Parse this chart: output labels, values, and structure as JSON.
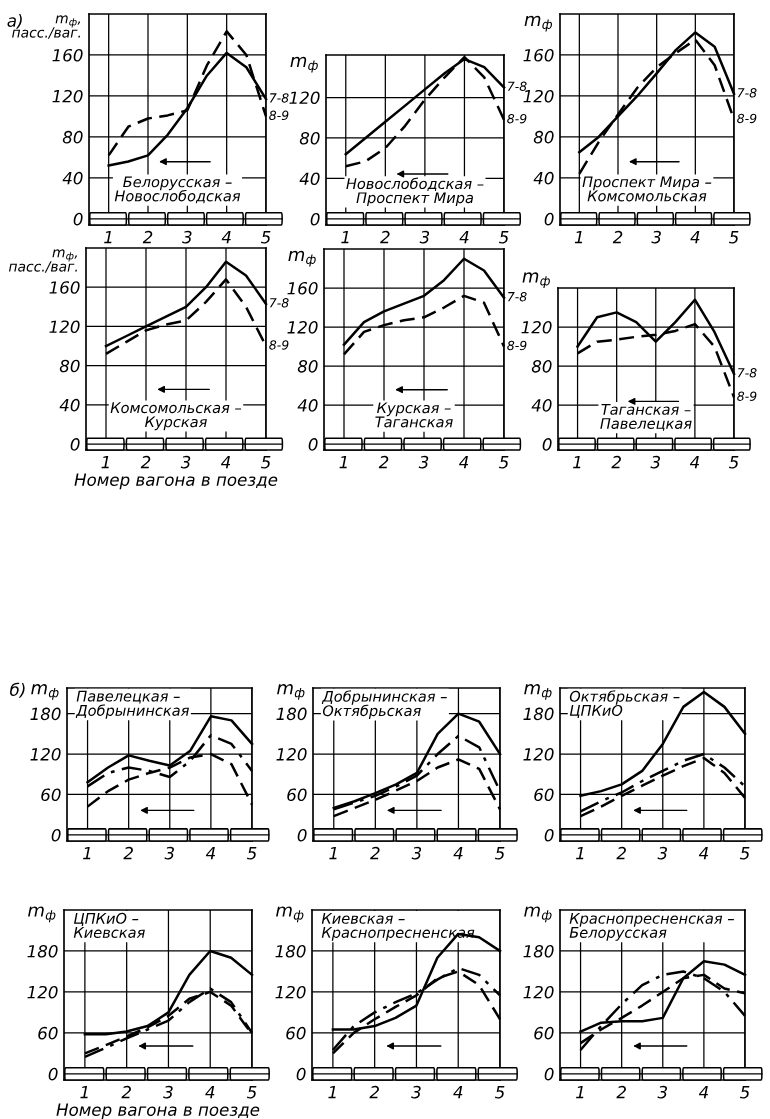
{
  "chart_data": [
    {
      "type": "line",
      "title": "Белорусская –\nНовослободская",
      "ylabel": "m$_{ф}$,\nпасс./ваг.",
      "annotations": [
        "а)"
      ],
      "x": [
        1,
        1.5,
        2,
        2.5,
        3,
        3.5,
        4,
        4.5,
        5
      ],
      "xlim": [
        0.5,
        5
      ],
      "ylim": [
        -6,
        200
      ],
      "xticks": [
        1,
        2,
        3,
        4,
        5
      ],
      "yticks": [
        0,
        40,
        80,
        120,
        160
      ],
      "grid": true,
      "series": [
        {
          "name": "7-8",
          "color": "#000000",
          "line_style": "solid",
          "values": [
            52,
            56,
            62,
            82,
            108,
            140,
            162,
            148,
            117
          ]
        },
        {
          "name": "8-9",
          "color": "#000000",
          "line_style": "dashed",
          "values": [
            62,
            90,
            98,
            101,
            106,
            150,
            183,
            160,
            100
          ]
        }
      ]
    },
    {
      "type": "line",
      "title": "Новослободская –\nПроспект Мира",
      "ylabel": "m$_{ф}$",
      "x": [
        1,
        1.5,
        2,
        2.5,
        3,
        3.5,
        4,
        4.5,
        5
      ],
      "xlim": [
        0.5,
        5
      ],
      "ylim": [
        -6,
        162
      ],
      "xticks": [
        1,
        2,
        3,
        4,
        5
      ],
      "yticks": [
        0,
        40,
        80,
        120
      ],
      "grid": true,
      "series": [
        {
          "name": "7-8",
          "color": "#000000",
          "line_style": "solid",
          "values": [
            64,
            80,
            96,
            112,
            128,
            144,
            158,
            150,
            130
          ]
        },
        {
          "name": "8-9",
          "color": "#000000",
          "line_style": "dashed",
          "values": [
            52,
            57,
            70,
            92,
            118,
            140,
            160,
            140,
            98
          ]
        }
      ]
    },
    {
      "type": "line",
      "title": "Проспект Мира –\nКомсомольская",
      "ylabel": "m$_{ф}$",
      "x": [
        1,
        1.5,
        2,
        2.5,
        3,
        3.5,
        4,
        4.5,
        5
      ],
      "xlim": [
        0.5,
        5
      ],
      "ylim": [
        -6,
        200
      ],
      "xticks": [
        1,
        2,
        3,
        4,
        5
      ],
      "yticks": [
        0,
        40,
        80,
        120,
        160
      ],
      "grid": true,
      "series": [
        {
          "name": "7-8",
          "color": "#000000",
          "line_style": "solid",
          "values": [
            65,
            80,
            100,
            120,
            142,
            165,
            182,
            168,
            122
          ]
        },
        {
          "name": "8-9",
          "color": "#000000",
          "line_style": "dashed",
          "values": [
            44,
            75,
            102,
            128,
            148,
            162,
            175,
            150,
            97
          ]
        }
      ]
    },
    {
      "type": "line",
      "title": "Комсомольская –\nКурская",
      "ylabel": "m$_{ф}$,\nпасс./ваг.",
      "xlabel": "Номер вагона в поезде",
      "x": [
        1,
        1.5,
        2,
        2.5,
        3,
        3.5,
        4,
        4.5,
        5
      ],
      "xlim": [
        0.5,
        5
      ],
      "ylim": [
        -6,
        200
      ],
      "xticks": [
        1,
        2,
        3,
        4,
        5
      ],
      "yticks": [
        0,
        40,
        80,
        120,
        160
      ],
      "grid": true,
      "series": [
        {
          "name": "7-8",
          "color": "#000000",
          "line_style": "solid",
          "values": [
            100,
            110,
            120,
            130,
            140,
            160,
            186,
            172,
            143
          ]
        },
        {
          "name": "8-9",
          "color": "#000000",
          "line_style": "dashed",
          "values": [
            92,
            104,
            116,
            122,
            126,
            145,
            168,
            140,
            100
          ]
        }
      ]
    },
    {
      "type": "line",
      "title": "Курская –\nТаганская",
      "ylabel": "m$_{ф}$",
      "x": [
        1,
        1.5,
        2,
        2.5,
        3,
        3.5,
        4,
        4.5,
        5
      ],
      "xlim": [
        0.5,
        5
      ],
      "ylim": [
        -6,
        200
      ],
      "xticks": [
        1,
        2,
        3,
        4,
        5
      ],
      "yticks": [
        0,
        40,
        80,
        120,
        160
      ],
      "grid": true,
      "series": [
        {
          "name": "7-8",
          "color": "#000000",
          "line_style": "solid",
          "values": [
            102,
            125,
            136,
            144,
            152,
            168,
            190,
            178,
            150
          ]
        },
        {
          "name": "8-9",
          "color": "#000000",
          "line_style": "dashed",
          "values": [
            92,
            115,
            122,
            127,
            130,
            140,
            152,
            145,
            100
          ]
        }
      ]
    },
    {
      "type": "line",
      "title": "Таганская –\nПавелецкая",
      "ylabel": "m$_{ф}$",
      "x": [
        1,
        1.5,
        2,
        2.5,
        3,
        3.5,
        4,
        4.5,
        5
      ],
      "xlim": [
        0.5,
        5
      ],
      "ylim": [
        -6,
        160
      ],
      "xticks": [
        1,
        2,
        3,
        4,
        5
      ],
      "yticks": [
        0,
        40,
        80,
        120
      ],
      "grid": true,
      "series": [
        {
          "name": "7-8",
          "color": "#000000",
          "line_style": "solid",
          "values": [
            100,
            130,
            135,
            125,
            105,
            125,
            148,
            115,
            72
          ]
        },
        {
          "name": "8-9",
          "color": "#000000",
          "line_style": "dashed",
          "values": [
            93,
            105,
            107,
            110,
            112,
            116,
            123,
            100,
            48
          ]
        }
      ]
    },
    {
      "type": "line",
      "title": "Павелецкая –\nДобрынинская",
      "ylabel": "m$_{ф}$",
      "annotations": [
        "б)"
      ],
      "x": [
        1,
        1.5,
        2,
        2.5,
        3,
        3.5,
        4,
        4.5,
        5
      ],
      "xlim": [
        0.5,
        5
      ],
      "ylim": [
        -9,
        218
      ],
      "xticks": [
        1,
        2,
        3,
        4,
        5
      ],
      "yticks": [
        0,
        60,
        120,
        180
      ],
      "grid": true,
      "series": [
        {
          "color": "#000000",
          "line_style": "solid",
          "values": [
            78,
            100,
            118,
            110,
            103,
            125,
            176,
            170,
            135
          ]
        },
        {
          "color": "#000000",
          "line_style": "dashdot",
          "values": [
            72,
            92,
            100,
            95,
            86,
            110,
            148,
            135,
            95
          ]
        },
        {
          "color": "#000000",
          "line_style": "dashed",
          "values": [
            42,
            65,
            82,
            92,
            100,
            115,
            120,
            105,
            45
          ]
        }
      ]
    },
    {
      "type": "line",
      "title": "Добрынинская –\nОктябрьская",
      "ylabel": "m$_{ф}$",
      "x": [
        1,
        1.5,
        2,
        2.5,
        3,
        3.5,
        4,
        4.5,
        5
      ],
      "xlim": [
        0.5,
        5
      ],
      "ylim": [
        -9,
        218
      ],
      "xticks": [
        1,
        2,
        3,
        4,
        5
      ],
      "yticks": [
        0,
        60,
        120,
        180
      ],
      "grid": true,
      "series": [
        {
          "color": "#000000",
          "line_style": "solid",
          "values": [
            40,
            50,
            62,
            75,
            92,
            150,
            180,
            168,
            120
          ]
        },
        {
          "color": "#000000",
          "line_style": "dashdot",
          "values": [
            38,
            48,
            58,
            72,
            88,
            120,
            147,
            130,
            65
          ]
        },
        {
          "color": "#000000",
          "line_style": "dashed",
          "values": [
            28,
            40,
            52,
            66,
            80,
            100,
            112,
            98,
            38
          ]
        }
      ]
    },
    {
      "type": "line",
      "title": "Октябрьская –\nЦПКиО",
      "ylabel": "m$_{ф}$",
      "x": [
        1,
        1.5,
        2,
        2.5,
        3,
        3.5,
        4,
        4.5,
        5
      ],
      "xlim": [
        0.5,
        5
      ],
      "ylim": [
        -9,
        218
      ],
      "xticks": [
        1,
        2,
        3,
        4,
        5
      ],
      "yticks": [
        0,
        60,
        120,
        180
      ],
      "grid": true,
      "series": [
        {
          "color": "#000000",
          "line_style": "solid",
          "values": [
            58,
            65,
            75,
            95,
            135,
            190,
            212,
            190,
            150
          ]
        },
        {
          "color": "#000000",
          "line_style": "dashdot",
          "values": [
            35,
            50,
            63,
            80,
            95,
            110,
            120,
            100,
            72
          ]
        },
        {
          "color": "#000000",
          "line_style": "dashed",
          "values": [
            28,
            42,
            58,
            73,
            88,
            102,
            114,
            92,
            55
          ]
        }
      ]
    },
    {
      "type": "line",
      "title": "ЦПКиО –\nКиевская",
      "ylabel": "m$_{ф}$",
      "xlabel": "Номер вагона в поезде",
      "x": [
        1,
        1.5,
        2,
        2.5,
        3,
        3.5,
        4,
        4.5,
        5
      ],
      "xlim": [
        0.5,
        5
      ],
      "ylim": [
        -9,
        240
      ],
      "xticks": [
        1,
        2,
        3,
        4,
        5
      ],
      "yticks": [
        0,
        60,
        120,
        180
      ],
      "grid": true,
      "series": [
        {
          "color": "#000000",
          "line_style": "solid",
          "values": [
            58,
            58,
            62,
            70,
            90,
            145,
            180,
            170,
            145
          ]
        },
        {
          "color": "#000000",
          "line_style": "dashdot",
          "values": [
            25,
            38,
            52,
            65,
            78,
            105,
            125,
            105,
            60
          ]
        },
        {
          "color": "#000000",
          "line_style": "dashed",
          "values": [
            30,
            42,
            55,
            68,
            85,
            110,
            120,
            100,
            58
          ]
        }
      ]
    },
    {
      "type": "line",
      "title": "Киевская –\nКраснопресненская",
      "ylabel": "m$_{ф}$",
      "x": [
        1,
        1.5,
        2,
        2.5,
        3,
        3.5,
        4,
        4.5,
        5
      ],
      "xlim": [
        0.5,
        5
      ],
      "ylim": [
        -9,
        240
      ],
      "xticks": [
        1,
        2,
        3,
        4,
        5
      ],
      "yticks": [
        0,
        60,
        120,
        180
      ],
      "grid": true,
      "series": [
        {
          "color": "#000000",
          "line_style": "solid",
          "values": [
            65,
            65,
            70,
            82,
            100,
            170,
            205,
            200,
            180
          ]
        },
        {
          "color": "#000000",
          "line_style": "dashdot",
          "values": [
            35,
            70,
            90,
            105,
            118,
            138,
            155,
            145,
            115
          ]
        },
        {
          "color": "#000000",
          "line_style": "dashed",
          "values": [
            30,
            60,
            80,
            98,
            115,
            140,
            150,
            130,
            80
          ]
        }
      ]
    },
    {
      "type": "line",
      "title": "Краснопресненская –\nБелорусская",
      "ylabel": "m$_{ф}$",
      "x": [
        1,
        1.5,
        2,
        2.5,
        3,
        3.5,
        4,
        4.5,
        5
      ],
      "xlim": [
        0.5,
        5
      ],
      "ylim": [
        -9,
        240
      ],
      "xticks": [
        1,
        2,
        3,
        4,
        5
      ],
      "yticks": [
        0,
        60,
        120,
        180
      ],
      "grid": true,
      "series": [
        {
          "color": "#000000",
          "line_style": "solid",
          "values": [
            62,
            75,
            77,
            77,
            82,
            140,
            165,
            160,
            145
          ]
        },
        {
          "color": "#000000",
          "line_style": "dashdot",
          "values": [
            35,
            70,
            102,
            130,
            145,
            150,
            140,
            120,
            85
          ]
        },
        {
          "color": "#000000",
          "line_style": "dashed",
          "values": [
            45,
            65,
            82,
            100,
            120,
            140,
            145,
            125,
            118
          ]
        }
      ]
    }
  ]
}
